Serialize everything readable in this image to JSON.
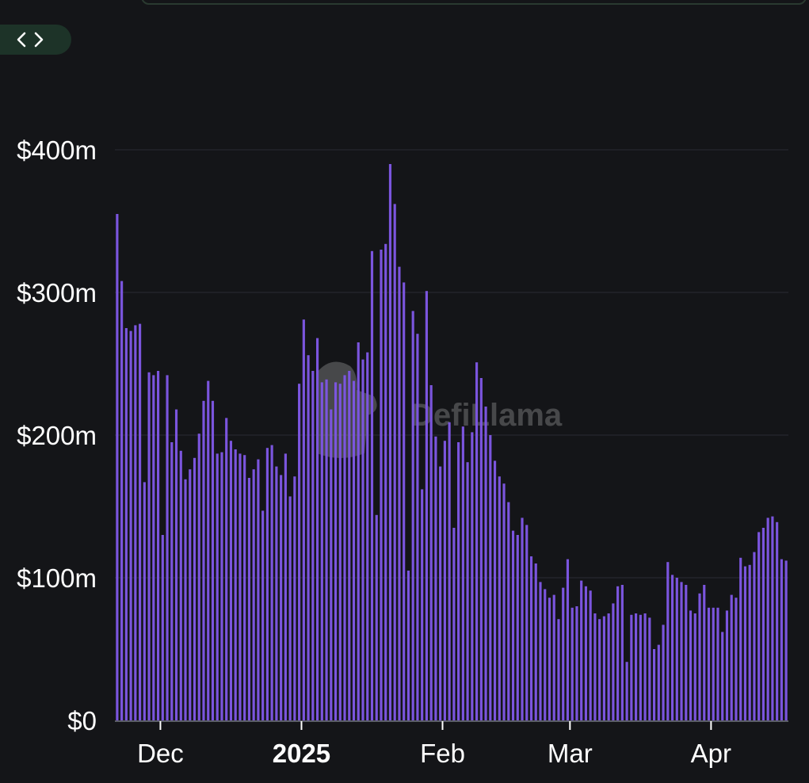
{
  "embed_toggle": {
    "icon": "code-brackets-icon",
    "glyph": "<>"
  },
  "watermark": {
    "text": "DefiLlama",
    "icon": "llama-logo-icon"
  },
  "colors": {
    "bar": "#7b55de",
    "grid": "#23252a",
    "axis": "#5a5d66",
    "background": "#141518",
    "text": "#ffffff"
  },
  "chart_data": {
    "type": "bar",
    "x_start": "2024-11-21",
    "x_interval": "day",
    "ylim": [
      0,
      400000000
    ],
    "yticks": [
      {
        "value": 0,
        "label": "$0"
      },
      {
        "value": 100000000,
        "label": "$100m"
      },
      {
        "value": 200000000,
        "label": "$200m"
      },
      {
        "value": 300000000,
        "label": "$300m"
      },
      {
        "value": 400000000,
        "label": "$400m"
      }
    ],
    "xticks": [
      {
        "date": "2024-12-01",
        "label": "Dec",
        "bold": false
      },
      {
        "date": "2025-01-01",
        "label": "2025",
        "bold": true
      },
      {
        "date": "2025-02-01",
        "label": "Feb",
        "bold": false
      },
      {
        "date": "2025-03-01",
        "label": "Mar",
        "bold": false
      },
      {
        "date": "2025-04-01",
        "label": "Apr",
        "bold": false
      }
    ],
    "grid": true,
    "values_m": [
      355,
      308,
      275,
      273,
      277,
      278,
      167,
      244,
      242,
      245,
      130,
      242,
      195,
      218,
      189,
      169,
      176,
      184,
      201,
      224,
      238,
      224,
      187,
      188,
      212,
      196,
      190,
      187,
      186,
      170,
      176,
      183,
      147,
      191,
      193,
      178,
      172,
      187,
      157,
      171,
      236,
      281,
      256,
      245,
      268,
      237,
      239,
      218,
      237,
      236,
      242,
      245,
      238,
      265,
      253,
      258,
      329,
      144,
      330,
      334,
      390,
      362,
      318,
      307,
      105,
      287,
      271,
      162,
      301,
      235,
      199,
      178,
      196,
      209,
      135,
      195,
      206,
      181,
      202,
      251,
      240,
      220,
      200,
      182,
      171,
      166,
      153,
      133,
      130,
      142,
      137,
      115,
      110,
      97,
      92,
      86,
      88,
      71,
      93,
      113,
      79,
      80,
      98,
      94,
      91,
      75,
      71,
      73,
      75,
      82,
      94,
      95,
      41,
      74,
      75,
      74,
      75,
      72,
      50,
      53,
      67,
      111,
      102,
      100,
      97,
      95,
      77,
      75,
      89,
      95,
      79,
      79,
      79,
      62,
      77,
      88,
      86,
      114,
      108,
      109,
      118,
      132,
      135,
      142,
      143,
      139,
      113,
      112
    ]
  }
}
